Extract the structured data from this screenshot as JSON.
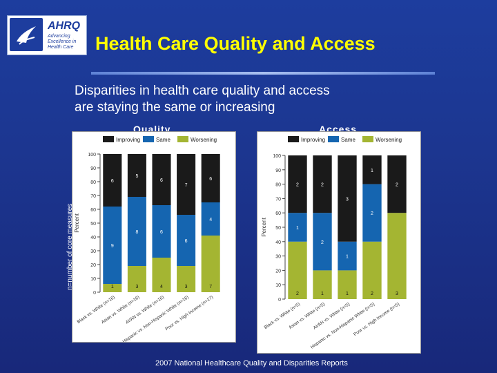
{
  "header": {
    "title": "Health Care Quality and Access",
    "subtitle_line1": "Disparities in health care quality and access",
    "subtitle_line2": "are staying the same or increasing"
  },
  "logo": {
    "agency": "AHRQ",
    "tagline": "Advancing Excellence in Health Care"
  },
  "side_note": "n=number of core measures",
  "footer": "2007 National Healthcare Quality and Disparities Reports",
  "colors": {
    "improving": "#1a1a1a",
    "same": "#1565b0",
    "worsening": "#a4b532",
    "title": "#ffff00"
  },
  "chart_data": [
    {
      "type": "bar",
      "stacked": true,
      "panel_label": "Quality",
      "ylabel": "Percent",
      "ylim": [
        0,
        100
      ],
      "yticks": [
        0,
        10,
        20,
        30,
        40,
        50,
        60,
        70,
        80,
        90,
        100
      ],
      "legend": [
        "Improving",
        "Same",
        "Worsening"
      ],
      "legend_position": "top",
      "categories": [
        "Black vs. White (n=16)",
        "Asian vs. White (n=16)",
        "AI/AN vs. White (n=16)",
        "Hispanic vs. Non-Hispanic White (n=16)",
        "Poor vs. High Income (n=17)"
      ],
      "series": [
        {
          "name": "Worsening",
          "values": [
            6,
            19,
            25,
            19,
            41
          ],
          "labels": [
            "1",
            "3",
            "4",
            "3",
            "7"
          ]
        },
        {
          "name": "Same",
          "values": [
            56,
            50,
            38,
            37,
            24
          ],
          "labels": [
            "9",
            "8",
            "6",
            "6",
            "4"
          ]
        },
        {
          "name": "Improving",
          "values": [
            38,
            31,
            37,
            44,
            35
          ],
          "labels": [
            "6",
            "5",
            "6",
            "7",
            "6"
          ]
        }
      ]
    },
    {
      "type": "bar",
      "stacked": true,
      "panel_label": "Access",
      "ylabel": "Percent",
      "ylim": [
        0,
        100
      ],
      "yticks": [
        0,
        10,
        20,
        30,
        40,
        50,
        60,
        70,
        80,
        90,
        100
      ],
      "legend": [
        "Improving",
        "Same",
        "Worsening"
      ],
      "legend_position": "top",
      "categories": [
        "Black vs. White (n=5)",
        "Asian vs. White (n=5)",
        "AI/AN vs. White (n=5)",
        "Hispanic vs. Non-Hispanic White (n=5)",
        "Poor vs. High Income (n=5)"
      ],
      "series": [
        {
          "name": "Worsening",
          "values": [
            40,
            20,
            20,
            40,
            60
          ],
          "labels": [
            "2",
            "1",
            "1",
            "2",
            "3"
          ]
        },
        {
          "name": "Same",
          "values": [
            20,
            40,
            20,
            40,
            0
          ],
          "labels": [
            "1",
            "2",
            "1",
            "2",
            ""
          ]
        },
        {
          "name": "Improving",
          "values": [
            40,
            40,
            60,
            20,
            40
          ],
          "labels": [
            "2",
            "2",
            "3",
            "1",
            "2"
          ]
        }
      ]
    }
  ]
}
